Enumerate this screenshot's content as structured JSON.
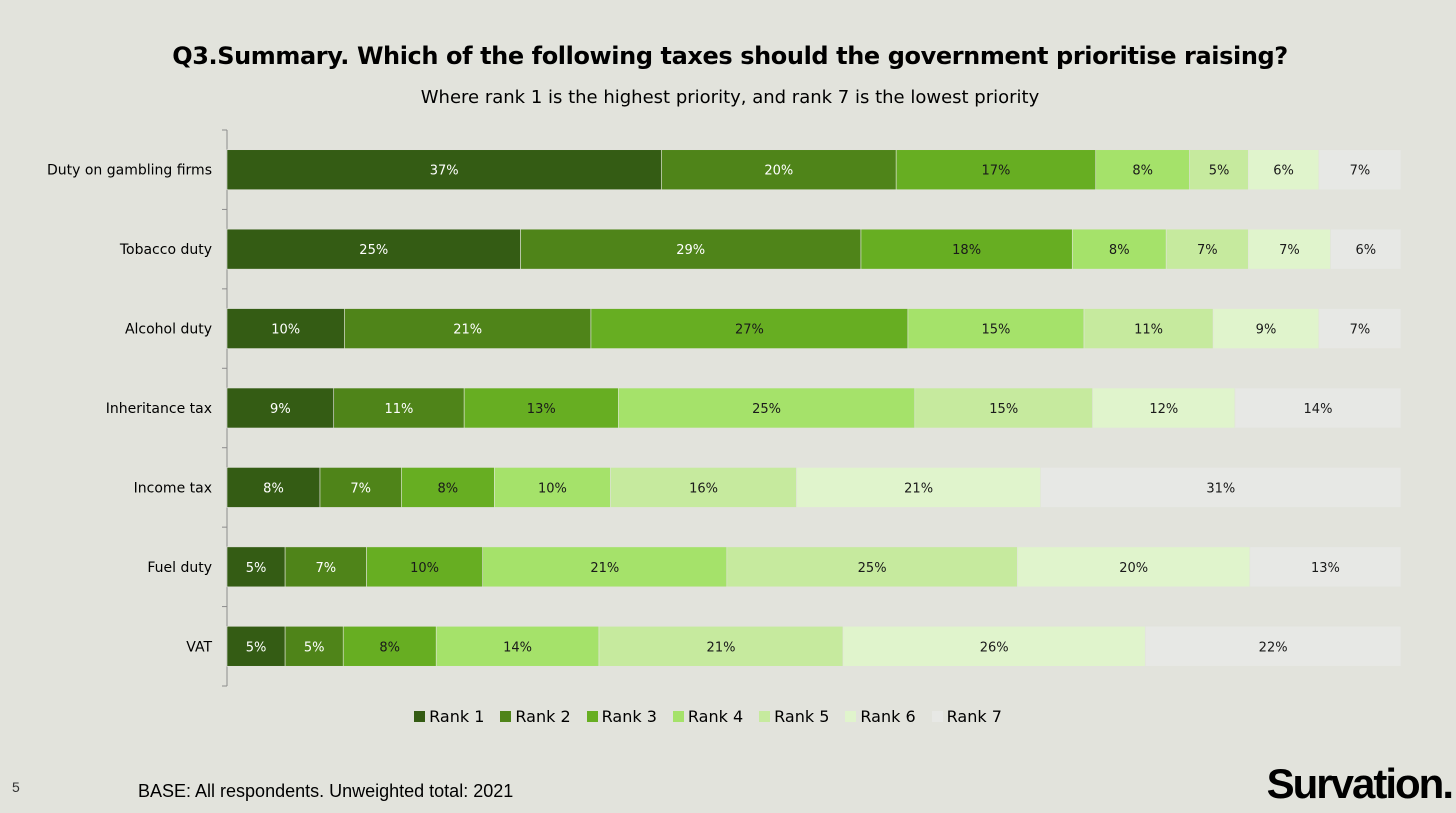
{
  "page": {
    "number": "5",
    "base_note": "BASE: All respondents. Unweighted total: 2021",
    "brand": "Survation."
  },
  "chart_data": {
    "type": "bar",
    "orientation": "horizontal",
    "stacked": "100%",
    "title": "Q3.Summary. Which of the following taxes should the government prioritise raising?",
    "subtitle": "Where rank 1 is the highest priority, and rank 7 is the lowest priority",
    "categories": [
      "Duty on gambling firms",
      "Tobacco duty",
      "Alcohol duty",
      "Inheritance tax",
      "Income tax",
      "Fuel duty",
      "VAT"
    ],
    "series": [
      {
        "name": "Rank 1",
        "color": "#345c14",
        "label_color": "#ffffff",
        "values": [
          37,
          25,
          10,
          9,
          8,
          5,
          5
        ]
      },
      {
        "name": "Rank 2",
        "color": "#4f8419",
        "label_color": "#ffffff",
        "values": [
          20,
          29,
          21,
          11,
          7,
          7,
          5
        ]
      },
      {
        "name": "Rank 3",
        "color": "#67ae22",
        "label_color": "#1a1a1a",
        "values": [
          17,
          18,
          27,
          13,
          8,
          10,
          8
        ]
      },
      {
        "name": "Rank 4",
        "color": "#a5e26a",
        "label_color": "#1a1a1a",
        "values": [
          8,
          8,
          15,
          25,
          10,
          21,
          14
        ]
      },
      {
        "name": "Rank 5",
        "color": "#c6ea9e",
        "label_color": "#1a1a1a",
        "values": [
          5,
          7,
          11,
          15,
          16,
          25,
          21
        ]
      },
      {
        "name": "Rank 6",
        "color": "#e0f4cc",
        "label_color": "#1a1a1a",
        "values": [
          6,
          7,
          9,
          12,
          21,
          20,
          26
        ]
      },
      {
        "name": "Rank 7",
        "color": "#e7e8e5",
        "label_color": "#1a1a1a",
        "values": [
          7,
          6,
          7,
          14,
          31,
          13,
          22
        ]
      }
    ],
    "value_suffix": "%",
    "xlim": [
      0,
      100
    ],
    "legend": "bottom",
    "grid": false
  }
}
